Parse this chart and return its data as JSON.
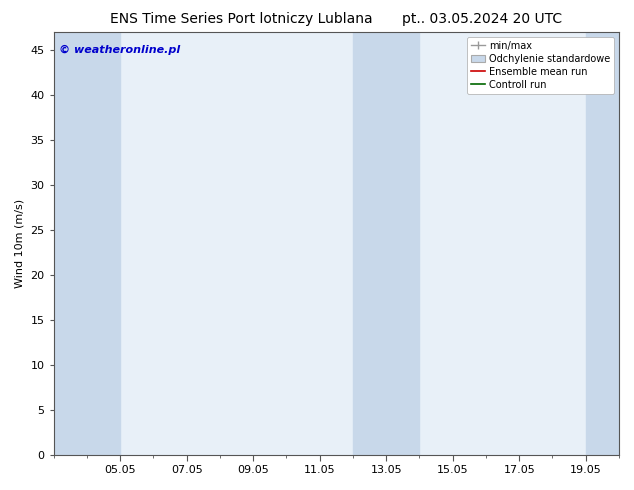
{
  "title_left": "ENS Time Series Port lotniczy Lublana",
  "title_right": "pt.. 03.05.2024 20 UTC",
  "ylabel": "Wind 10m (m/s)",
  "watermark": "© weatheronline.pl",
  "watermark_color": "#0000cc",
  "ylim": [
    0,
    47
  ],
  "yticks": [
    0,
    5,
    10,
    15,
    20,
    25,
    30,
    35,
    40,
    45
  ],
  "background_color": "#ffffff",
  "plot_bg_color": "#e8f0f8",
  "band_color": "#c8d8ea",
  "legend_labels": [
    "min/max",
    "Odchylenie standardowe",
    "Ensemble mean run",
    "Controll run"
  ],
  "title_fontsize": 10,
  "axis_fontsize": 8,
  "tick_fontsize": 8,
  "x_min": -1,
  "x_max": 16,
  "new_tick_pos": [
    1,
    3,
    5,
    7,
    9,
    11,
    13,
    15
  ],
  "new_tick_labels": [
    "05.05",
    "07.05",
    "09.05",
    "11.05",
    "13.05",
    "15.05",
    "17.05",
    "19.05"
  ],
  "band_pairs": [
    [
      -1,
      0
    ],
    [
      0,
      1
    ],
    [
      8,
      9
    ],
    [
      9,
      10
    ],
    [
      15,
      16
    ]
  ]
}
